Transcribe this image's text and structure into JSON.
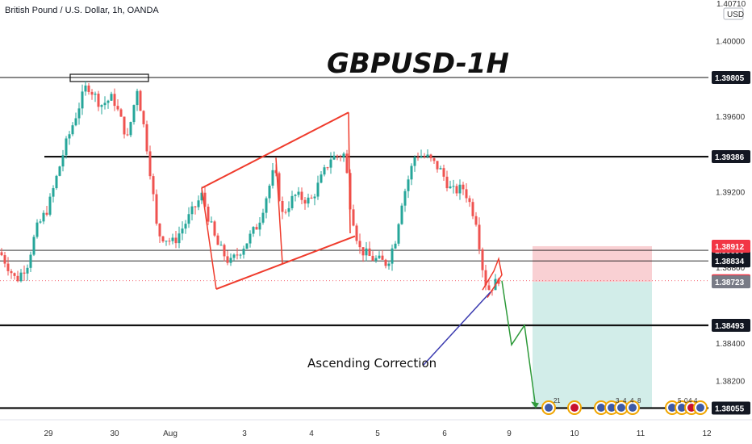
{
  "header": {
    "symbol_info": "British Pound / U.S. Dollar, 1h, OANDA",
    "currency": "USD"
  },
  "chart_data": {
    "type": "candlestick",
    "title": "GBPUSD-1H",
    "annotation": "Ascending Correction",
    "x_tick_labels": [
      "29",
      "30",
      "Aug",
      "3",
      "4",
      "5",
      "6",
      "9",
      "10",
      "11",
      "12"
    ],
    "y_axis_labels": [
      "1.40000",
      "1.39600",
      "1.39200",
      "1.38800",
      "1.38400",
      "1.38200"
    ],
    "y_axis_top_partial": "1.40710",
    "ylim": [
      1.3799,
      1.4011
    ],
    "horizontal_levels": [
      {
        "label": "1.39805",
        "value": 1.39805,
        "style": "thin"
      },
      {
        "label": "1.39386",
        "value": 1.39386,
        "style": "bold"
      },
      {
        "label": "1.38890",
        "value": 1.3889,
        "style": "thin"
      },
      {
        "label": "1.38834",
        "value": 1.38834,
        "style": "thin"
      },
      {
        "label": "1.38493",
        "value": 1.38493,
        "style": "bold"
      },
      {
        "label": "1.38055",
        "value": 1.38055,
        "style": "bold"
      }
    ],
    "price_tags": [
      {
        "label": "1.38912",
        "value": 1.38912,
        "role": "stop",
        "color": "#f23645"
      },
      {
        "label": "1.38729",
        "value": 1.38729,
        "role": "last",
        "color": "#f23645"
      },
      {
        "label": "1.38723",
        "value": 1.38723,
        "role": "entry",
        "color": "#787b86"
      }
    ],
    "position": {
      "entry": 1.38723,
      "stop": 1.38912,
      "target": 1.38055,
      "direction": "short"
    },
    "ascending_channel": {
      "upper": [
        [
          1.3922,
          1.3962
        ],
        [
          1.3922,
          1.39615
        ]
      ],
      "lower": [
        [
          1.38685,
          1.38965
        ]
      ]
    },
    "projection": [
      1.38729,
      1.3839,
      1.38493,
      1.38055
    ],
    "event_numbers": [
      "2",
      "1",
      "3",
      "4",
      "4",
      "8",
      "5",
      "0",
      "4",
      "4"
    ],
    "colors": {
      "up": "#26a69a",
      "down": "#ef5350",
      "stop_zone": "#f9d0d3",
      "target_zone": "#d2ede9",
      "channel": "#ef3b2c",
      "projection": "#2e9a3a",
      "correction_line": "#3b3bb0"
    }
  }
}
